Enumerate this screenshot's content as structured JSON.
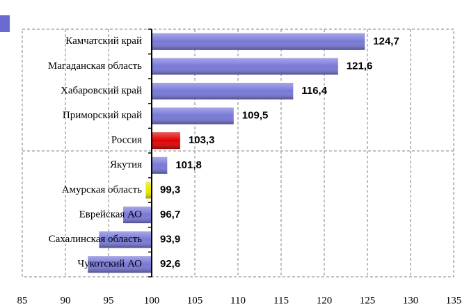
{
  "chart_data": {
    "type": "bar",
    "orientation": "horizontal",
    "categories": [
      "Камчатский край",
      "Магаданская область",
      "Хабаровский край",
      "Приморский край",
      "Россия",
      "Якутия",
      "Амурская область",
      "Еврейская АО",
      "Сахалинская область",
      "Чукотский АО"
    ],
    "values": [
      124.7,
      121.6,
      116.4,
      109.5,
      103.3,
      101.8,
      99.3,
      96.7,
      93.9,
      92.6
    ],
    "value_labels": [
      "124,7",
      "121,6",
      "116,4",
      "109,5",
      "103,3",
      "101,8",
      "99,3",
      "96,7",
      "93,9",
      "92,6"
    ],
    "colors": [
      "#7878d8",
      "#7878d8",
      "#7878d8",
      "#7878d8",
      "#e00000",
      "#7878d8",
      "#e8e800",
      "#7878d8",
      "#7878d8",
      "#7878d8"
    ],
    "baseline": 100,
    "xlim": [
      85,
      135
    ],
    "xticks": [
      85,
      90,
      95,
      100,
      105,
      110,
      115,
      120,
      125,
      130,
      135
    ],
    "grid": true
  }
}
